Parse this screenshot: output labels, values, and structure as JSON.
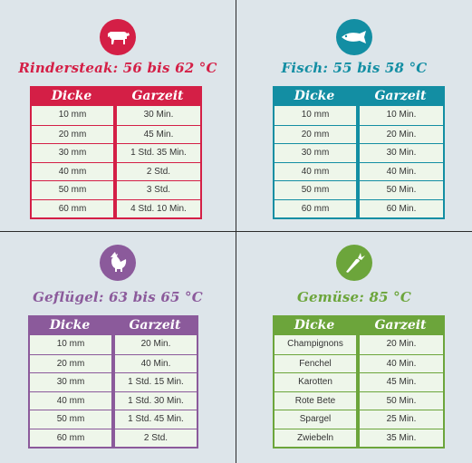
{
  "panels": [
    {
      "key": "rind",
      "title": "Rindersteak: 56 bis 62 °C",
      "color": "#d41f46",
      "icon": "cow-icon",
      "headers": [
        "Dicke",
        "Garzeit"
      ],
      "rows": [
        [
          "10 mm",
          "30 Min."
        ],
        [
          "20 mm",
          "45 Min."
        ],
        [
          "30 mm",
          "1 Std. 35 Min."
        ],
        [
          "40 mm",
          "2 Std."
        ],
        [
          "50 mm",
          "3 Std."
        ],
        [
          "60 mm",
          "4 Std. 10 Min."
        ]
      ]
    },
    {
      "key": "fisch",
      "title": "Fisch: 55 bis 58 °C",
      "color": "#138ea3",
      "icon": "fish-icon",
      "headers": [
        "Dicke",
        "Garzeit"
      ],
      "rows": [
        [
          "10 mm",
          "10 Min."
        ],
        [
          "20 mm",
          "20 Min."
        ],
        [
          "30 mm",
          "30 Min."
        ],
        [
          "40 mm",
          "40 Min."
        ],
        [
          "50 mm",
          "50 Min."
        ],
        [
          "60 mm",
          "60 Min."
        ]
      ]
    },
    {
      "key": "gefluegel",
      "title": "Geflügel: 63 bis 65 °C",
      "color": "#8b5a9b",
      "icon": "chicken-icon",
      "headers": [
        "Dicke",
        "Garzeit"
      ],
      "rows": [
        [
          "10 mm",
          "20 Min."
        ],
        [
          "20 mm",
          "40 Min."
        ],
        [
          "30 mm",
          "1 Std. 15 Min."
        ],
        [
          "40 mm",
          "1 Std. 30 Min."
        ],
        [
          "50 mm",
          "1 Std. 45 Min."
        ],
        [
          "60 mm",
          "2 Std."
        ]
      ]
    },
    {
      "key": "gemuese",
      "title": "Gemüse: 85 °C",
      "color": "#6ca53b",
      "icon": "carrot-icon",
      "headers": [
        "Dicke",
        "Garzeit"
      ],
      "rows": [
        [
          "Champignons",
          "20 Min."
        ],
        [
          "Fenchel",
          "40 Min."
        ],
        [
          "Karotten",
          "45 Min."
        ],
        [
          "Rote Bete",
          "50 Min."
        ],
        [
          "Spargel",
          "25 Min."
        ],
        [
          "Zwiebeln",
          "35 Min."
        ]
      ]
    }
  ]
}
